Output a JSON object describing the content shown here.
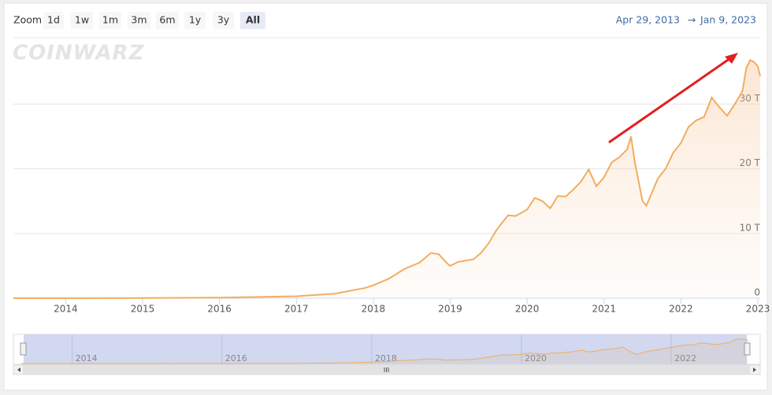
{
  "range_selector": {
    "label": "Zoom",
    "buttons": [
      "1d",
      "1w",
      "1m",
      "3m",
      "6m",
      "1y",
      "3y",
      "All"
    ],
    "selected": 7
  },
  "date_range": {
    "from": "Apr 29, 2013",
    "separator": "→",
    "to": "Jan 9, 2023"
  },
  "watermark": "COINWARZ",
  "chart_data": {
    "type": "area",
    "color": "#f2ad5e",
    "x": [
      2013.32,
      2014.0,
      2015.0,
      2016.0,
      2017.0,
      2017.5,
      2017.9,
      2018.0,
      2018.2,
      2018.4,
      2018.6,
      2018.75,
      2018.85,
      2018.95,
      2019.0,
      2019.1,
      2019.3,
      2019.4,
      2019.5,
      2019.6,
      2019.75,
      2019.85,
      2020.0,
      2020.1,
      2020.2,
      2020.3,
      2020.4,
      2020.5,
      2020.6,
      2020.7,
      2020.8,
      2020.9,
      2021.0,
      2021.1,
      2021.2,
      2021.3,
      2021.35,
      2021.4,
      2021.5,
      2021.55,
      2021.7,
      2021.8,
      2021.9,
      2022.0,
      2022.1,
      2022.2,
      2022.3,
      2022.4,
      2022.5,
      2022.6,
      2022.7,
      2022.8,
      2022.85,
      2022.9,
      2022.95,
      2023.0,
      2023.03
    ],
    "values": [
      0,
      0.001,
      0.04,
      0.1,
      0.3,
      0.7,
      1.6,
      2.0,
      3.0,
      4.5,
      5.5,
      7.0,
      6.8,
      5.5,
      5.0,
      5.6,
      6.0,
      7.0,
      8.5,
      10.5,
      12.8,
      12.7,
      13.7,
      15.5,
      15.0,
      13.9,
      15.8,
      15.7,
      16.8,
      18.0,
      19.9,
      17.3,
      18.7,
      21.0,
      21.8,
      23.0,
      25.0,
      21.0,
      15.0,
      14.3,
      18.5,
      20.0,
      22.5,
      24.0,
      26.5,
      27.5,
      28.0,
      31.0,
      29.5,
      28.2,
      30.0,
      32.0,
      35.6,
      36.8,
      36.5,
      35.8,
      34.3
    ],
    "xlim": [
      2013.32,
      2023.03
    ],
    "xticks": [
      2014,
      2015,
      2016,
      2017,
      2018,
      2019,
      2020,
      2021,
      2022,
      2023
    ],
    "ylim": [
      0,
      40
    ],
    "yticks": [
      0,
      {
        "value": 10,
        "label": "10 T"
      },
      {
        "value": 20,
        "label": "20 T"
      },
      {
        "value": 30,
        "label": "30 T"
      }
    ],
    "grid": true,
    "navigator_ticks": [
      2014,
      2016,
      2018,
      2020,
      2022
    ]
  }
}
